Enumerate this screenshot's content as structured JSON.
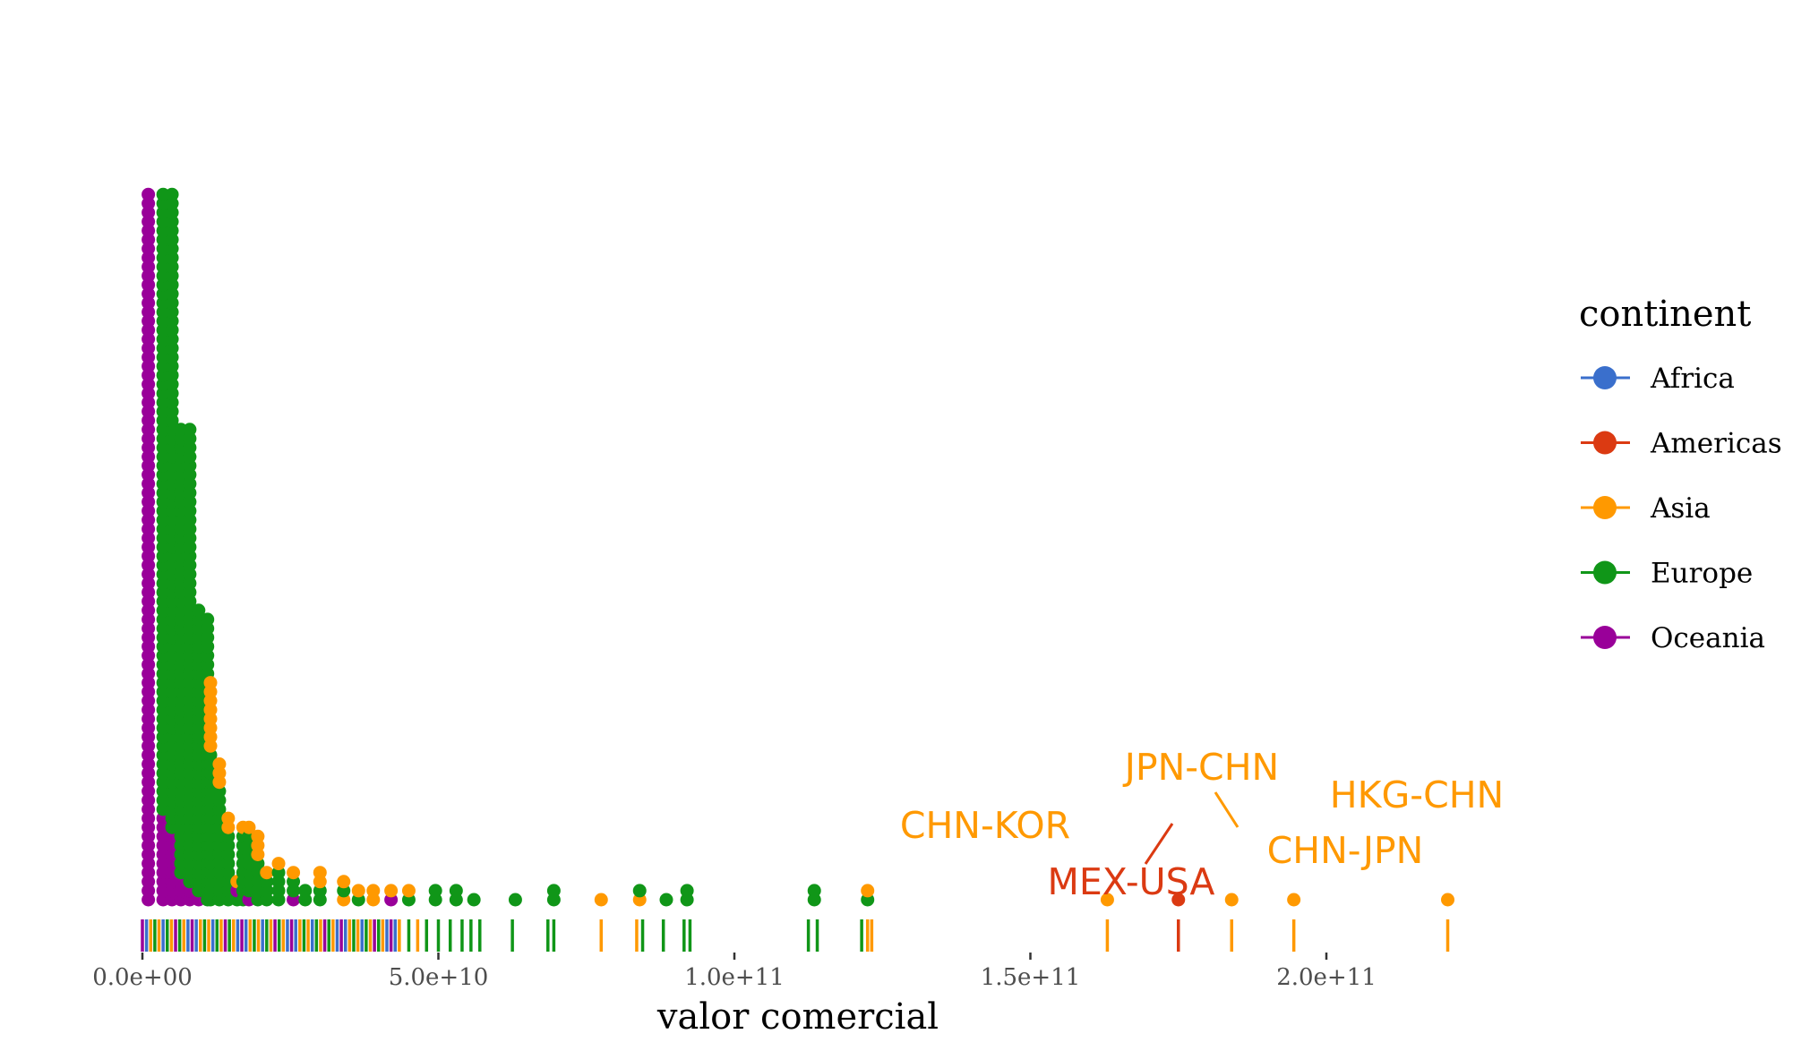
{
  "chart_data": {
    "type": "scatter",
    "subtype": "dotplot-with-rug",
    "xlabel": "valor comercial",
    "ylabel": "",
    "xlim": [
      -2000000000.0,
      230000000000.0
    ],
    "x_ticks": [
      0,
      50000000000.0,
      100000000000.0,
      150000000000.0,
      200000000000.0
    ],
    "x_tick_labels": [
      "0.0e+00",
      "5.0e+10",
      "1.0e+11",
      "1.5e+11",
      "2.0e+11"
    ],
    "grid": false,
    "legend": {
      "title": "continent",
      "position": "right",
      "entries": [
        {
          "name": "Africa",
          "color": "#3A6FCC"
        },
        {
          "name": "Americas",
          "color": "#DB3A12"
        },
        {
          "name": "Asia",
          "color": "#FF9900"
        },
        {
          "name": "Europe",
          "color": "#109618"
        },
        {
          "name": "Oceania",
          "color": "#990099"
        }
      ]
    },
    "colors": {
      "Africa": "#3A6FCC",
      "Americas": "#DB3A12",
      "Asia": "#FF9900",
      "Europe": "#109618",
      "Oceania": "#990099"
    },
    "binwidth": 2200000000.0,
    "stacks": [
      {
        "x": 1000000000.0,
        "segments": [
          [
            "Oceania",
            79
          ]
        ]
      },
      {
        "x": 3500000000.0,
        "segments": [
          [
            "Oceania",
            10
          ],
          [
            "Europe",
            69
          ]
        ]
      },
      {
        "x": 5000000000.0,
        "segments": [
          [
            "Oceania",
            8
          ],
          [
            "Europe",
            71
          ]
        ]
      },
      {
        "x": 6500000000.0,
        "segments": [
          [
            "Oceania",
            3
          ],
          [
            "Europe",
            50
          ]
        ]
      },
      {
        "x": 8000000000.0,
        "segments": [
          [
            "Oceania",
            2
          ],
          [
            "Europe",
            51
          ]
        ]
      },
      {
        "x": 9500000000.0,
        "segments": [
          [
            "Oceania",
            1
          ],
          [
            "Europe",
            32
          ]
        ]
      },
      {
        "x": 11000000000.0,
        "segments": [
          [
            "Europe",
            32
          ]
        ]
      },
      {
        "x": 11500000000.0,
        "segments": [
          [
            "Europe",
            17
          ],
          [
            "Asia",
            8
          ]
        ]
      },
      {
        "x": 13000000000.0,
        "segments": [
          [
            "Europe",
            13
          ],
          [
            "Asia",
            3
          ]
        ]
      },
      {
        "x": 14500000000.0,
        "segments": [
          [
            "Europe",
            8
          ],
          [
            "Asia",
            2
          ]
        ]
      },
      {
        "x": 16000000000.0,
        "segments": [
          [
            "Europe",
            1
          ],
          [
            "Oceania",
            1
          ],
          [
            "Asia",
            1
          ]
        ]
      },
      {
        "x": 17000000000.0,
        "segments": [
          [
            "Europe",
            8
          ],
          [
            "Asia",
            1
          ]
        ]
      },
      {
        "x": 18000000000.0,
        "segments": [
          [
            "Oceania",
            1
          ],
          [
            "Europe",
            7
          ],
          [
            "Asia",
            1
          ]
        ]
      },
      {
        "x": 19500000000.0,
        "segments": [
          [
            "Europe",
            5
          ],
          [
            "Asia",
            3
          ]
        ]
      },
      {
        "x": 21000000000.0,
        "segments": [
          [
            "Europe",
            3
          ],
          [
            "Asia",
            1
          ]
        ]
      },
      {
        "x": 23000000000.0,
        "segments": [
          [
            "Europe",
            4
          ],
          [
            "Asia",
            1
          ]
        ]
      },
      {
        "x": 25500000000.0,
        "segments": [
          [
            "Oceania",
            1
          ],
          [
            "Europe",
            2
          ],
          [
            "Asia",
            1
          ]
        ]
      },
      {
        "x": 27500000000.0,
        "segments": [
          [
            "Europe",
            2
          ]
        ]
      },
      {
        "x": 30000000000.0,
        "segments": [
          [
            "Europe",
            2
          ],
          [
            "Asia",
            2
          ]
        ]
      },
      {
        "x": 34000000000.0,
        "segments": [
          [
            "Asia",
            1
          ],
          [
            "Europe",
            1
          ],
          [
            "Asia",
            1
          ]
        ]
      },
      {
        "x": 36500000000.0,
        "segments": [
          [
            "Europe",
            1
          ],
          [
            "Asia",
            1
          ]
        ]
      },
      {
        "x": 39000000000.0,
        "segments": [
          [
            "Asia",
            2
          ]
        ]
      },
      {
        "x": 42000000000.0,
        "segments": [
          [
            "Oceania",
            1
          ],
          [
            "Asia",
            1
          ]
        ]
      },
      {
        "x": 45000000000.0,
        "segments": [
          [
            "Europe",
            1
          ],
          [
            "Asia",
            1
          ]
        ]
      },
      {
        "x": 49500000000.0,
        "segments": [
          [
            "Europe",
            2
          ]
        ]
      },
      {
        "x": 53000000000.0,
        "segments": [
          [
            "Europe",
            2
          ]
        ]
      },
      {
        "x": 56000000000.0,
        "segments": [
          [
            "Europe",
            1
          ]
        ]
      },
      {
        "x": 63000000000.0,
        "segments": [
          [
            "Europe",
            1
          ]
        ]
      },
      {
        "x": 69500000000.0,
        "segments": [
          [
            "Europe",
            2
          ]
        ]
      },
      {
        "x": 77500000000.0,
        "segments": [
          [
            "Asia",
            1
          ]
        ]
      },
      {
        "x": 84000000000.0,
        "segments": [
          [
            "Asia",
            1
          ],
          [
            "Europe",
            1
          ]
        ]
      },
      {
        "x": 88500000000.0,
        "segments": [
          [
            "Europe",
            1
          ]
        ]
      },
      {
        "x": 92000000000.0,
        "segments": [
          [
            "Europe",
            2
          ]
        ]
      },
      {
        "x": 113500000000.0,
        "segments": [
          [
            "Europe",
            2
          ]
        ]
      },
      {
        "x": 122500000000.0,
        "segments": [
          [
            "Europe",
            1
          ],
          [
            "Asia",
            1
          ]
        ]
      },
      {
        "x": 163000000000.0,
        "segments": [
          [
            "Asia",
            1
          ]
        ]
      },
      {
        "x": 175000000000.0,
        "segments": [
          [
            "Americas",
            1
          ]
        ]
      },
      {
        "x": 184000000000.0,
        "segments": [
          [
            "Asia",
            1
          ]
        ]
      },
      {
        "x": 194500000000.0,
        "segments": [
          [
            "Asia",
            1
          ]
        ]
      },
      {
        "x": 220500000000.0,
        "segments": [
          [
            "Asia",
            1
          ]
        ]
      }
    ],
    "rug": [
      {
        "from": 0,
        "to": 44000000000.0,
        "mixed": true
      },
      {
        "x": 45000000000.0,
        "continent": "Europe"
      },
      {
        "x": 46500000000.0,
        "continent": "Asia"
      },
      {
        "x": 48000000000.0,
        "continent": "Europe"
      },
      {
        "x": 50000000000.0,
        "continent": "Europe"
      },
      {
        "x": 52000000000.0,
        "continent": "Europe"
      },
      {
        "x": 54000000000.0,
        "continent": "Europe"
      },
      {
        "x": 55500000000.0,
        "continent": "Europe"
      },
      {
        "x": 57000000000.0,
        "continent": "Europe"
      },
      {
        "x": 62500000000.0,
        "continent": "Europe"
      },
      {
        "x": 68500000000.0,
        "continent": "Europe"
      },
      {
        "x": 69500000000.0,
        "continent": "Europe"
      },
      {
        "x": 77500000000.0,
        "continent": "Asia"
      },
      {
        "x": 83500000000.0,
        "continent": "Asia"
      },
      {
        "x": 84500000000.0,
        "continent": "Europe"
      },
      {
        "x": 88000000000.0,
        "continent": "Europe"
      },
      {
        "x": 91500000000.0,
        "continent": "Europe"
      },
      {
        "x": 92500000000.0,
        "continent": "Europe"
      },
      {
        "x": 112500000000.0,
        "continent": "Europe"
      },
      {
        "x": 114000000000.0,
        "continent": "Europe"
      },
      {
        "x": 121500000000.0,
        "continent": "Europe"
      },
      {
        "x": 122500000000.0,
        "continent": "Asia"
      },
      {
        "x": 123200000000.0,
        "continent": "Asia"
      },
      {
        "x": 163000000000.0,
        "continent": "Asia"
      },
      {
        "x": 175000000000.0,
        "continent": "Americas"
      },
      {
        "x": 184000000000.0,
        "continent": "Asia"
      },
      {
        "x": 194500000000.0,
        "continent": "Asia"
      },
      {
        "x": 220500000000.0,
        "continent": "Asia"
      }
    ],
    "annotations": [
      {
        "label": "CHN-KOR",
        "continent": "Asia",
        "x": 163000000000.0
      },
      {
        "label": "MEX-USA",
        "continent": "Americas",
        "x": 175000000000.0
      },
      {
        "label": "JPN-CHN",
        "continent": "Asia",
        "x": 184000000000.0
      },
      {
        "label": "CHN-JPN",
        "continent": "Asia",
        "x": 194500000000.0
      },
      {
        "label": "HKG-CHN",
        "continent": "Asia",
        "x": 220500000000.0
      }
    ]
  }
}
